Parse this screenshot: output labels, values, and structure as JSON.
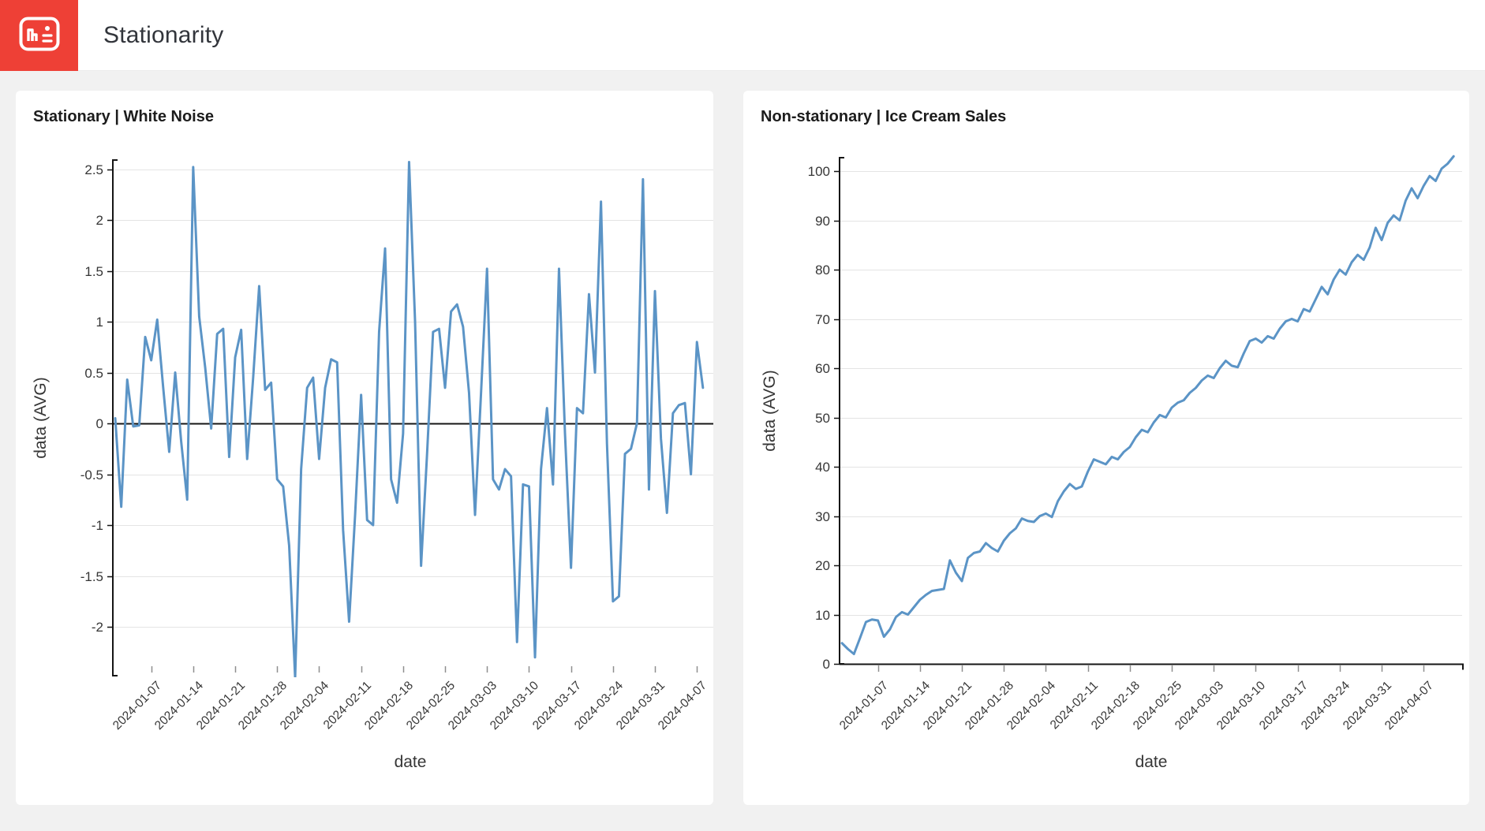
{
  "header": {
    "title": "Stationarity",
    "logo": {
      "bg_color": "#ee4036",
      "icon": "chart-card-icon"
    }
  },
  "page": {
    "background": "#f1f1f1",
    "card_background": "#ffffff"
  },
  "chart_data": [
    {
      "type": "line",
      "title": "Stationary | White Noise",
      "xlabel": "date",
      "ylabel": "data (AVG)",
      "x_start_date": "2024-01-01",
      "x_step_days": 1,
      "x_tick_labels": [
        "2024-01-07",
        "2024-01-14",
        "2024-01-21",
        "2024-01-28",
        "2024-02-04",
        "2024-02-11",
        "2024-02-18",
        "2024-02-25",
        "2024-03-03",
        "2024-03-10",
        "2024-03-17",
        "2024-03-24",
        "2024-03-31",
        "2024-04-07"
      ],
      "x_tick_day_index": [
        6,
        13,
        20,
        27,
        34,
        41,
        48,
        55,
        62,
        69,
        76,
        83,
        90,
        97
      ],
      "y_ticks": [
        2.5,
        2,
        1.5,
        1,
        0.5,
        0,
        -0.5,
        -1,
        -1.5,
        -2
      ],
      "ylim": [
        -2.47,
        2.57
      ],
      "grid": true,
      "legend": "none",
      "line_color": "#5b94c6",
      "values": [
        0.05,
        -0.82,
        0.43,
        -0.03,
        -0.02,
        0.85,
        0.62,
        1.02,
        0.35,
        -0.28,
        0.5,
        -0.18,
        -0.75,
        2.52,
        1.05,
        0.55,
        -0.05,
        0.88,
        0.93,
        -0.33,
        0.65,
        0.92,
        -0.35,
        0.45,
        1.35,
        0.33,
        0.4,
        -0.55,
        -0.62,
        -1.2,
        -2.5,
        -0.45,
        0.35,
        0.45,
        -0.35,
        0.35,
        0.63,
        0.6,
        -1.05,
        -1.95,
        -0.9,
        0.28,
        -0.95,
        -1.0,
        0.9,
        1.72,
        -0.55,
        -0.78,
        -0.1,
        2.57,
        1.0,
        -1.4,
        -0.3,
        0.9,
        0.93,
        0.35,
        1.1,
        1.17,
        0.95,
        0.3,
        -0.9,
        0.3,
        1.52,
        -0.55,
        -0.65,
        -0.45,
        -0.52,
        -2.15,
        -0.6,
        -0.62,
        -2.3,
        -0.45,
        0.15,
        -0.6,
        1.52,
        -0.1,
        -1.42,
        0.15,
        0.1,
        1.27,
        0.5,
        2.18,
        -0.2,
        -1.75,
        -1.7,
        -0.3,
        -0.25,
        0.0,
        2.4,
        -0.65,
        1.3,
        -0.15,
        -0.88,
        0.1,
        0.18,
        0.2,
        -0.5,
        0.8,
        0.35
      ]
    },
    {
      "type": "line",
      "title": "Non-stationary | Ice Cream Sales",
      "xlabel": "date",
      "ylabel": "data (AVG)",
      "x_start_date": "2024-01-01",
      "x_step_days": 1,
      "x_tick_labels": [
        "2024-01-07",
        "2024-01-14",
        "2024-01-21",
        "2024-01-28",
        "2024-02-04",
        "2024-02-11",
        "2024-02-18",
        "2024-02-25",
        "2024-03-03",
        "2024-03-10",
        "2024-03-17",
        "2024-03-24",
        "2024-03-31",
        "2024-04-07"
      ],
      "x_tick_day_index": [
        6,
        13,
        20,
        27,
        34,
        41,
        48,
        55,
        62,
        69,
        76,
        83,
        90,
        97
      ],
      "y_ticks": [
        100,
        90,
        80,
        70,
        60,
        50,
        40,
        30,
        20,
        10,
        0
      ],
      "ylim": [
        0,
        103
      ],
      "grid": true,
      "legend": "none",
      "line_color": "#5b94c6",
      "values": [
        4.2,
        3.0,
        2.0,
        5.2,
        8.5,
        9.0,
        8.8,
        5.5,
        7.0,
        9.5,
        10.5,
        10.0,
        11.5,
        13.0,
        14.0,
        14.8,
        15.0,
        15.2,
        21.0,
        18.5,
        16.8,
        21.5,
        22.5,
        22.8,
        24.5,
        23.5,
        22.8,
        25.0,
        26.5,
        27.5,
        29.5,
        29.0,
        28.8,
        30.0,
        30.5,
        29.8,
        33.0,
        35.0,
        36.5,
        35.5,
        36.0,
        39.0,
        41.5,
        41.0,
        40.5,
        42.0,
        41.5,
        43.0,
        44.0,
        46.0,
        47.5,
        47.0,
        49.0,
        50.5,
        50.0,
        52.0,
        53.0,
        53.5,
        55.0,
        56.0,
        57.5,
        58.5,
        58.0,
        60.0,
        61.5,
        60.5,
        60.2,
        63.0,
        65.5,
        66.0,
        65.2,
        66.5,
        66.0,
        68.0,
        69.5,
        70.0,
        69.5,
        72.0,
        71.5,
        74.0,
        76.5,
        75.0,
        78.0,
        80.0,
        79.0,
        81.5,
        83.0,
        82.0,
        84.5,
        88.5,
        86.0,
        89.5,
        91.0,
        90.0,
        94.0,
        96.5,
        94.5,
        97.0,
        99.0,
        98.0,
        100.5,
        101.5,
        103.0
      ]
    }
  ],
  "colors": {
    "grid_line": "#e4e4e4",
    "axis_line": "#151515",
    "x_tick_mark": "#8f8f8f",
    "tick_text": "#363636",
    "title_text": "#1c1c1c"
  }
}
